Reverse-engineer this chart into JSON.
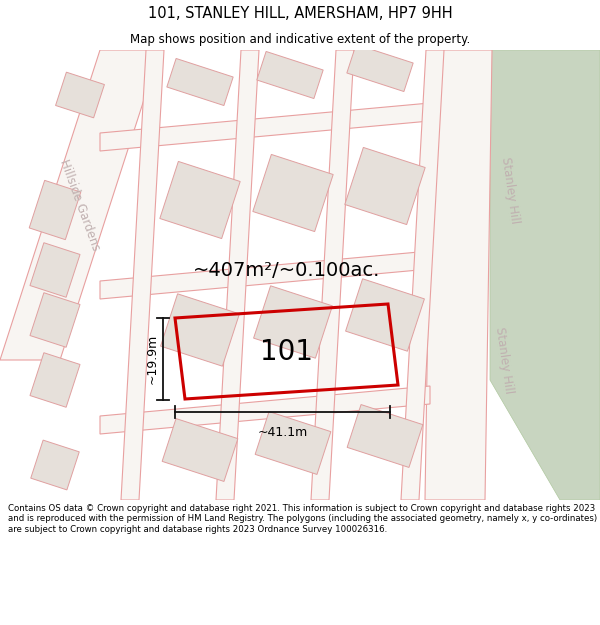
{
  "title": "101, STANLEY HILL, AMERSHAM, HP7 9HH",
  "subtitle": "Map shows position and indicative extent of the property.",
  "footer": "Contains OS data © Crown copyright and database right 2021. This information is subject to Crown copyright and database rights 2023 and is reproduced with the permission of HM Land Registry. The polygons (including the associated geometry, namely x, y co-ordinates) are subject to Crown copyright and database rights 2023 Ordnance Survey 100026316.",
  "bg_color": "#f2ede8",
  "road_fill": "#f8f5f2",
  "road_outline": "#e8a0a0",
  "block_fill": "#e6e0da",
  "block_outline": "#e0a0a0",
  "highlight_color": "#cc0000",
  "green_fill": "#c8d5c0",
  "green_outline": "#b0c8a0",
  "measure_color": "#111111",
  "road_label_color": "#c0b0b0",
  "area_text": "~407m²/~0.100ac.",
  "width_text": "~41.1m",
  "height_text": "~19.9m",
  "plot_label": "101",
  "title_fontsize": 10.5,
  "subtitle_fontsize": 8.5,
  "footer_fontsize": 6.2,
  "area_fontsize": 14,
  "measure_fontsize": 9,
  "plot_label_fontsize": 20,
  "road_label_fontsize": 8.5
}
